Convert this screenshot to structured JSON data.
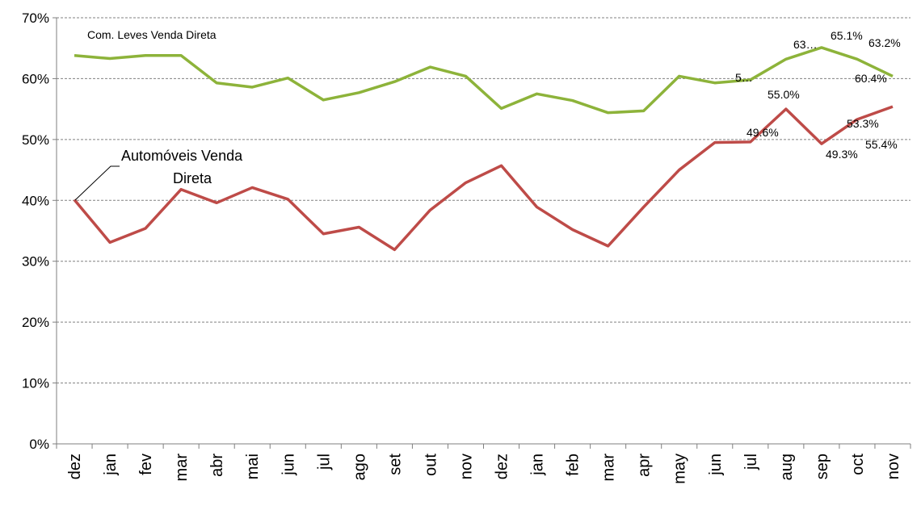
{
  "chart_data": {
    "type": "line",
    "categories": [
      "dez",
      "jan",
      "fev",
      "mar",
      "abr",
      "mai",
      "jun",
      "jul",
      "ago",
      "set",
      "out",
      "nov",
      "dez",
      "jan",
      "feb",
      "mar",
      "apr",
      "may",
      "jun",
      "jul",
      "aug",
      "sep",
      "oct",
      "nov"
    ],
    "ylim": [
      0,
      70
    ],
    "yticks": [
      "0%",
      "10%",
      "20%",
      "30%",
      "40%",
      "50%",
      "60%",
      "70%"
    ],
    "grid": true,
    "series": [
      {
        "name": "Com. Leves Venda Direta",
        "color": "#8DB33A",
        "values": [
          63.8,
          63.3,
          63.8,
          63.8,
          59.3,
          58.6,
          60.1,
          56.5,
          57.7,
          59.5,
          61.9,
          60.4,
          55.1,
          57.5,
          56.4,
          54.4,
          54.7,
          60.4,
          59.3,
          59.8,
          63.2,
          65.1,
          63.2,
          60.4
        ]
      },
      {
        "name": "Automóveis Venda Direta",
        "color": "#BE4B48",
        "values": [
          40.1,
          33.1,
          35.4,
          41.8,
          39.6,
          42.1,
          40.2,
          34.5,
          35.6,
          31.9,
          38.4,
          42.9,
          45.7,
          38.9,
          35.2,
          32.5,
          38.9,
          45.0,
          49.5,
          49.6,
          55.0,
          49.3,
          53.3,
          55.4
        ]
      }
    ],
    "data_labels": {
      "green": [
        "5…",
        "63…",
        "65.1%",
        "63.2%",
        "60.4%"
      ],
      "red": [
        "49.6%",
        "55.0%",
        "49.3%",
        "53.3%",
        "55.4%"
      ]
    },
    "annotations": {
      "green_series_label": "Com. Leves Venda Direta",
      "red_series_label_line1": "Automóveis Venda",
      "red_series_label_line2": "Direta"
    }
  }
}
